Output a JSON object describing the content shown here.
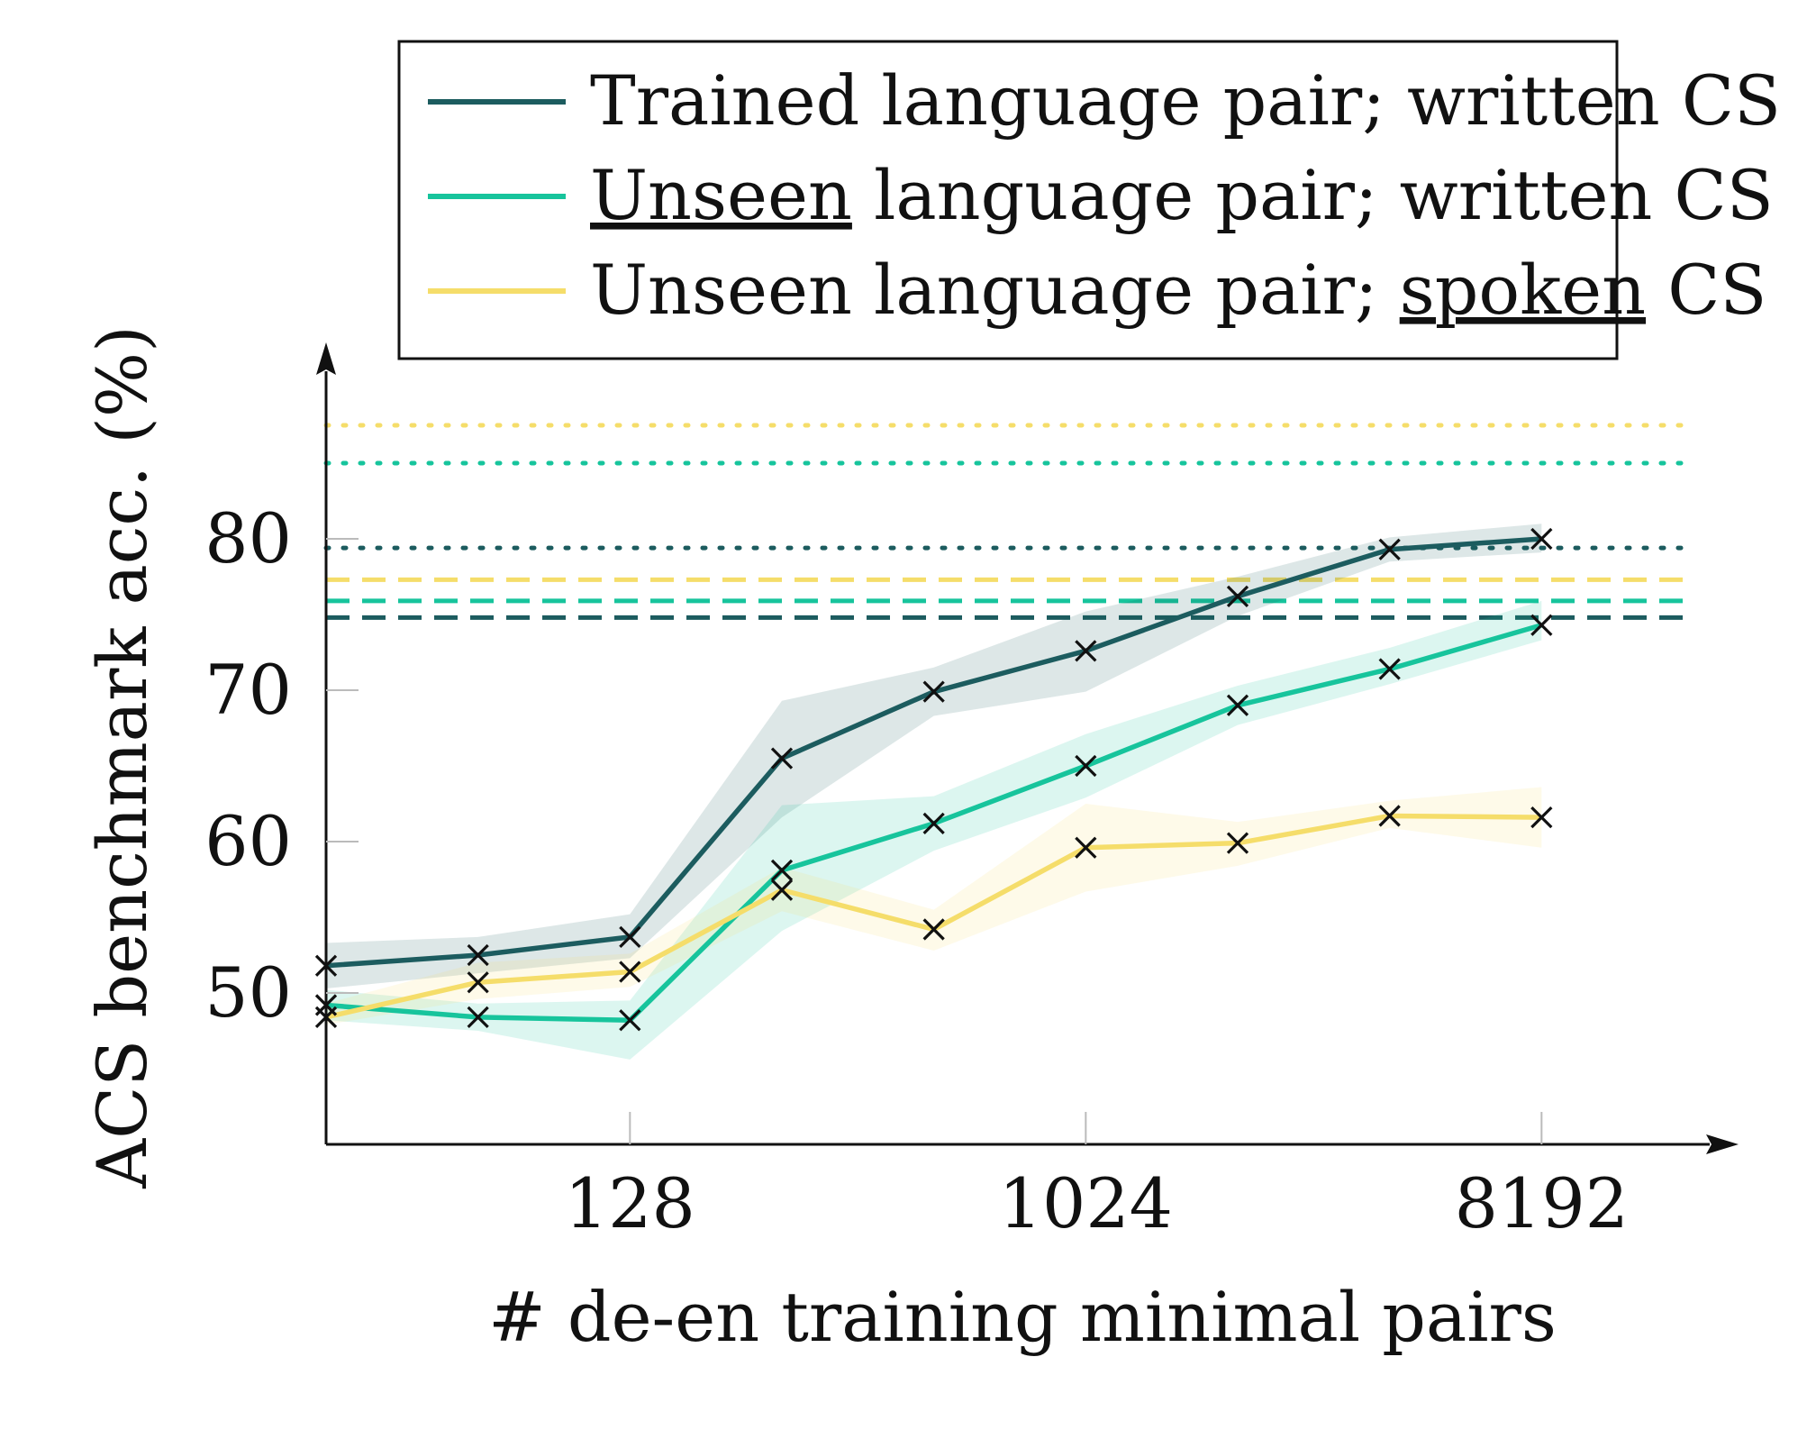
{
  "chart_data": {
    "type": "line",
    "xlabel": "# de-en training minimal pairs",
    "ylabel": "ACS benchmark acc. (%)",
    "x_scale": "log2",
    "x": [
      32,
      64,
      128,
      256,
      512,
      1024,
      2048,
      4096,
      8192
    ],
    "x_ticks": [
      128,
      1024,
      8192
    ],
    "x_tick_labels": [
      "128",
      "1024",
      "8192"
    ],
    "xlim": [
      32,
      16384
    ],
    "y_ticks": [
      50,
      60,
      70,
      80
    ],
    "y_tick_labels": [
      "50",
      "60",
      "70",
      "80"
    ],
    "ylim": [
      40,
      90
    ],
    "grid": false,
    "legend_position": "top",
    "marker": "x",
    "series": [
      {
        "name": "Trained language pair; written CS",
        "name_parts": [
          {
            "text": "Trained language pair; written CS",
            "underline": false
          }
        ],
        "color": "#1c5c5f",
        "values": [
          51.8,
          52.5,
          53.7,
          65.5,
          69.9,
          72.6,
          76.2,
          79.3,
          80.0
        ],
        "band_low": [
          50.3,
          51.3,
          52.3,
          61.6,
          68.3,
          69.9,
          74.9,
          78.5,
          79.1
        ],
        "band_high": [
          53.3,
          53.7,
          55.2,
          69.3,
          71.5,
          75.2,
          77.5,
          80.1,
          81.0
        ],
        "baseline_dotted": 79.4,
        "baseline_dashed": 74.8
      },
      {
        "name": "Unseen language pair; written CS",
        "name_parts": [
          {
            "text": "Unseen",
            "underline": true
          },
          {
            "text": " language pair; written CS",
            "underline": false
          }
        ],
        "color": "#17c49c",
        "values": [
          49.2,
          48.4,
          48.2,
          58.1,
          61.2,
          65.0,
          69.0,
          71.4,
          74.3
        ],
        "band_low": [
          48.2,
          47.5,
          45.6,
          54.1,
          59.4,
          62.9,
          67.7,
          70.4,
          73.3
        ],
        "band_high": [
          50.2,
          49.3,
          49.5,
          62.4,
          63.0,
          67.1,
          70.3,
          72.8,
          75.9
        ],
        "baseline_dotted": 85.0,
        "baseline_dashed": 75.9
      },
      {
        "name": "Unseen language pair; spoken CS",
        "name_parts": [
          {
            "text": "Unseen language pair; ",
            "underline": false
          },
          {
            "text": "spoken",
            "underline": true
          },
          {
            "text": " CS",
            "underline": false
          }
        ],
        "color": "#f5dd6a",
        "values": [
          48.4,
          50.7,
          51.4,
          56.8,
          54.2,
          59.6,
          59.9,
          61.7,
          61.6
        ],
        "band_low": [
          47.9,
          49.6,
          50.4,
          55.4,
          52.8,
          56.7,
          58.4,
          60.9,
          59.6
        ],
        "band_high": [
          49.3,
          52.0,
          52.6,
          58.3,
          55.5,
          62.5,
          61.3,
          62.7,
          63.6
        ],
        "baseline_dotted": 87.5,
        "baseline_dashed": 77.3
      }
    ]
  }
}
